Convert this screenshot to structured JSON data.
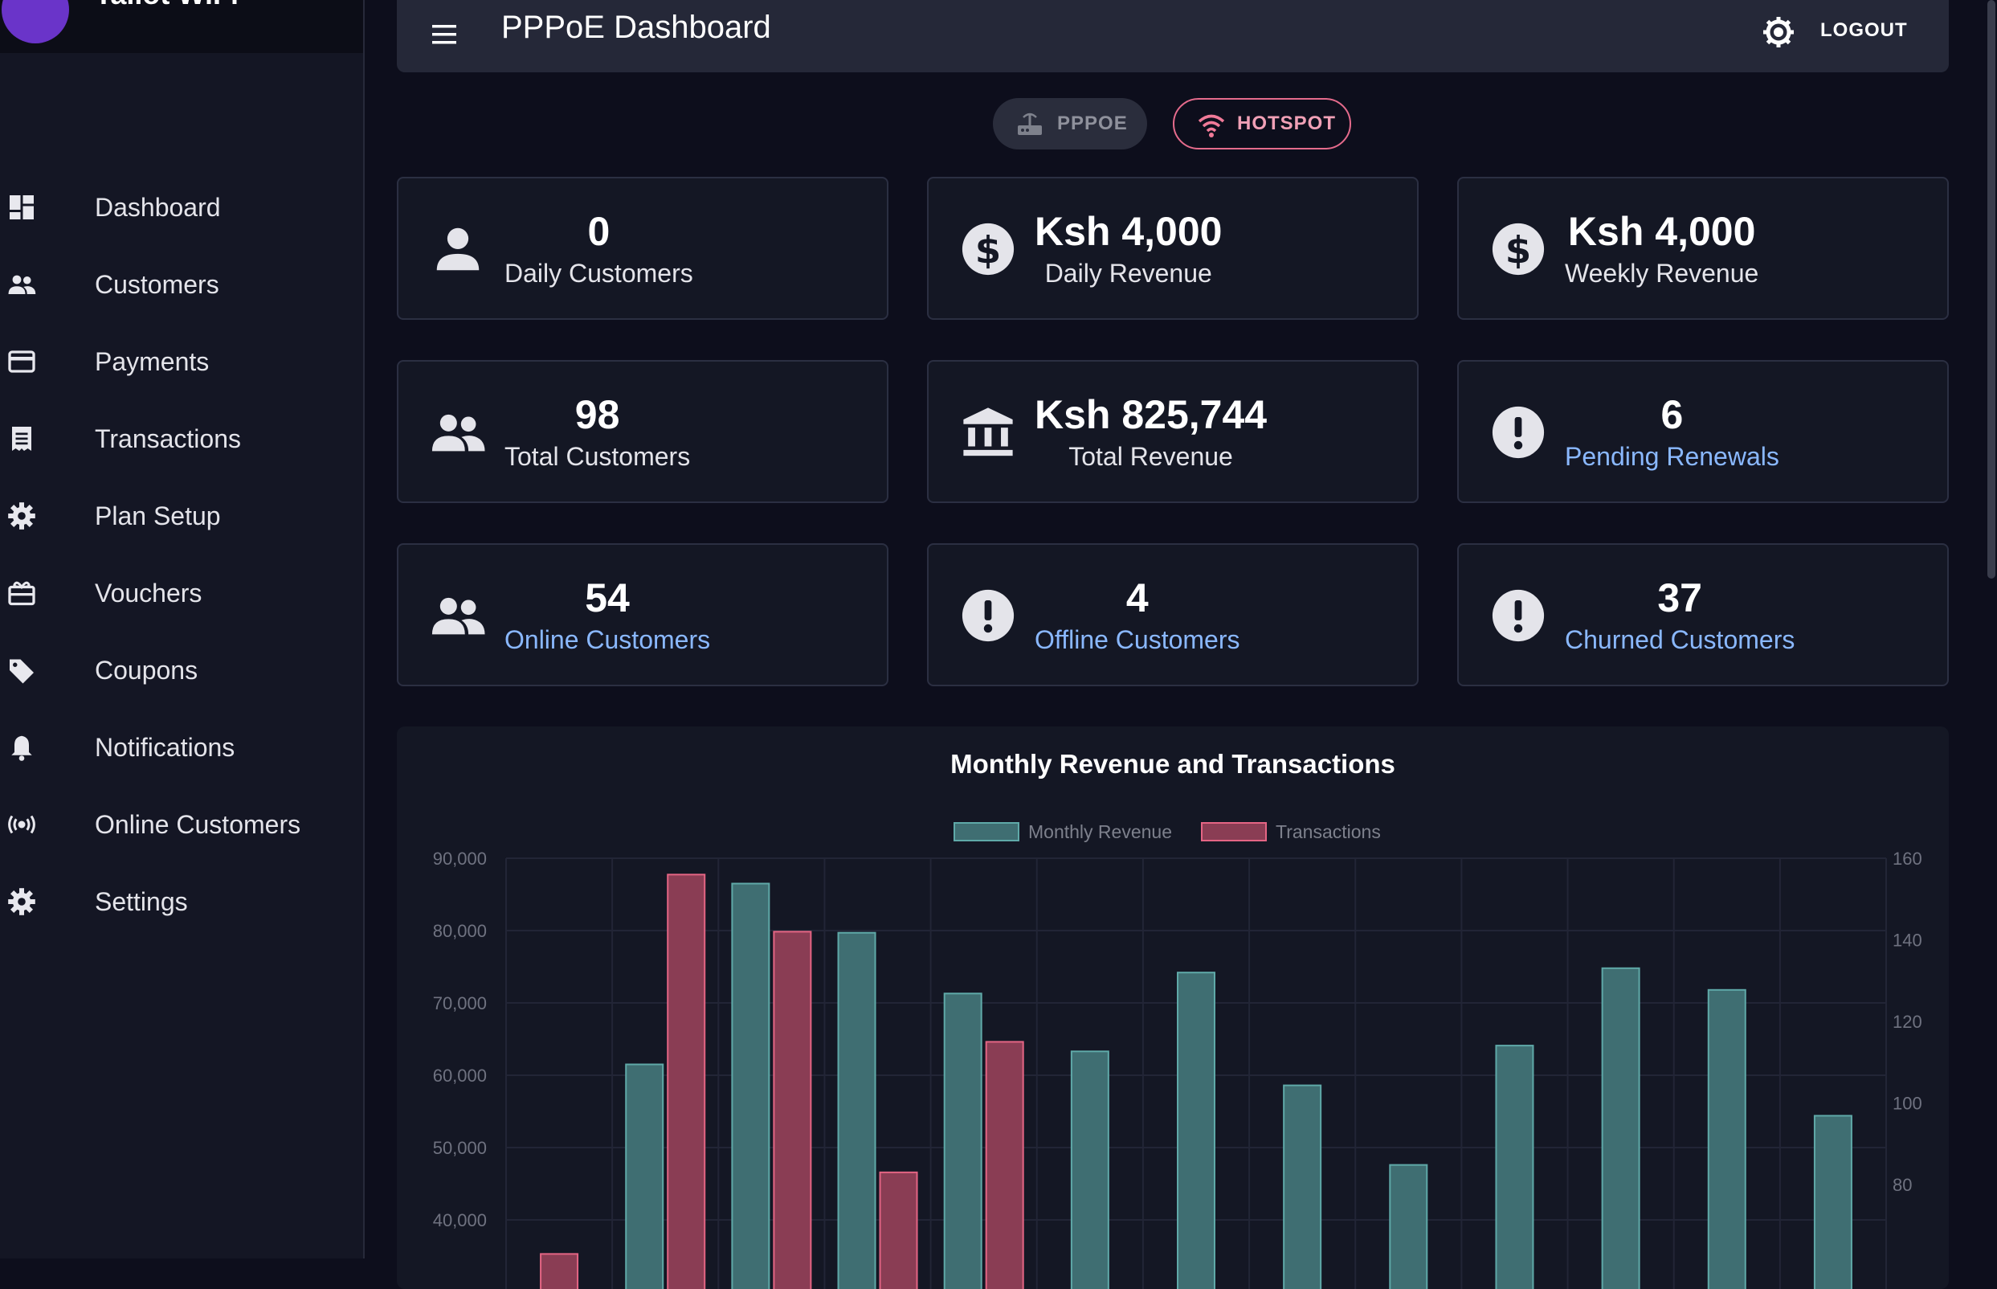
{
  "sidebar": {
    "brand": "Taliot WiFi",
    "items": [
      {
        "label": "Dashboard",
        "icon": "dashboard-icon"
      },
      {
        "label": "Customers",
        "icon": "people-icon"
      },
      {
        "label": "Payments",
        "icon": "credit-card-icon"
      },
      {
        "label": "Transactions",
        "icon": "receipt-icon"
      },
      {
        "label": "Plan Setup",
        "icon": "gear-icon"
      },
      {
        "label": "Vouchers",
        "icon": "gift-card-icon"
      },
      {
        "label": "Coupons",
        "icon": "tag-icon"
      },
      {
        "label": "Notifications",
        "icon": "bell-icon"
      },
      {
        "label": "Online Customers",
        "icon": "broadcast-icon"
      },
      {
        "label": "Settings",
        "icon": "gear-icon"
      }
    ]
  },
  "header": {
    "title": "PPPoE Dashboard",
    "logout_label": "LOGOUT"
  },
  "toggle": {
    "pppoe_label": "PPPOE",
    "hotspot_label": "HOTSPOT"
  },
  "cards": [
    {
      "value": "0",
      "label": "Daily Customers",
      "icon": "person-icon",
      "accent": false
    },
    {
      "value": "Ksh 4,000",
      "label": "Daily Revenue",
      "icon": "dollar-icon",
      "accent": false
    },
    {
      "value": "Ksh 4,000",
      "label": "Weekly Revenue",
      "icon": "dollar-icon",
      "accent": false
    },
    {
      "value": "98",
      "label": "Total Customers",
      "icon": "people-icon",
      "accent": false
    },
    {
      "value": "Ksh 825,744",
      "label": "Total Revenue",
      "icon": "bank-icon",
      "accent": false
    },
    {
      "value": "6",
      "label": "Pending Renewals",
      "icon": "alert-icon",
      "accent": true
    },
    {
      "value": "54",
      "label": "Online Customers",
      "icon": "people-icon",
      "accent": true
    },
    {
      "value": "4",
      "label": "Offline Customers",
      "icon": "alert-icon",
      "accent": true
    },
    {
      "value": "37",
      "label": "Churned Customers",
      "icon": "alert-icon",
      "accent": true
    }
  ],
  "colors": {
    "revenue_fill": "#3f6e72",
    "revenue_stroke": "#5fa9a8",
    "transactions_fill": "#8a3d54",
    "transactions_stroke": "#e46584",
    "accent_text": "#8ab8ff"
  },
  "chart_data": {
    "type": "bar",
    "title": "Monthly Revenue and Transactions",
    "legend_position": "top",
    "grid": true,
    "y_left": {
      "ticks": [
        "90,000",
        "80,000",
        "70,000",
        "60,000",
        "50,000",
        "40,000"
      ],
      "range": [
        30000,
        90000
      ]
    },
    "y_right": {
      "ticks": [
        "160",
        "140",
        "120",
        "100",
        "80"
      ],
      "range": [
        60,
        160
      ]
    },
    "series": [
      {
        "name": "Monthly Revenue",
        "axis": "left",
        "values": [
          null,
          61500,
          86500,
          79700,
          71300,
          63300,
          74200,
          58600,
          47600,
          64100,
          74800,
          71800,
          54400
        ]
      },
      {
        "name": "Transactions",
        "axis": "right",
        "values": [
          63,
          156,
          142,
          83,
          115,
          null,
          null,
          null,
          null,
          null,
          null,
          null,
          null
        ]
      }
    ]
  }
}
